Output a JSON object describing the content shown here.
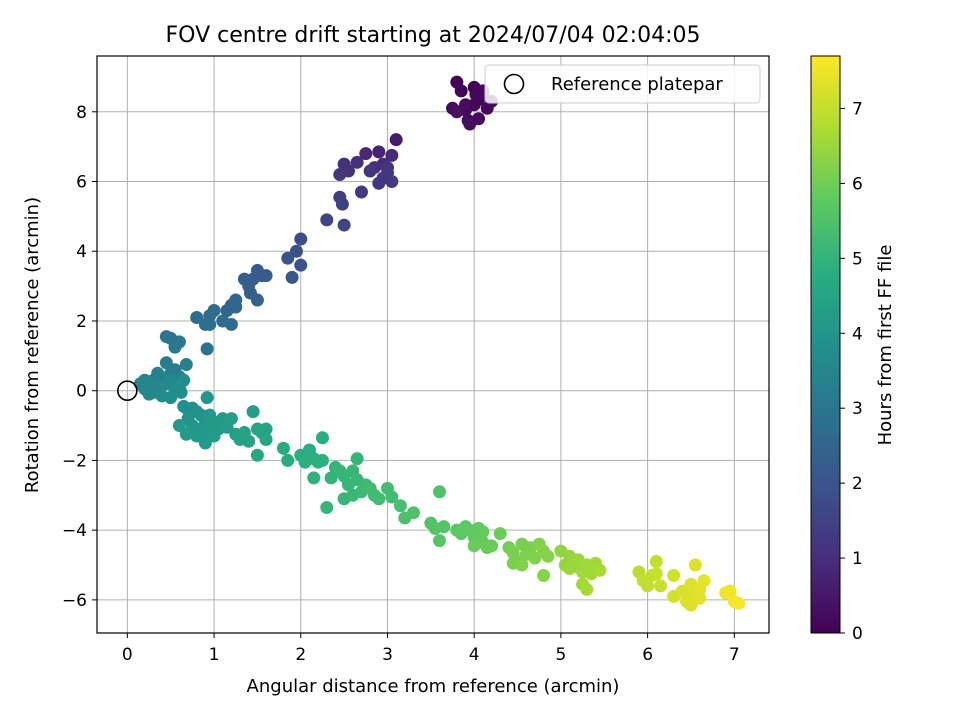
{
  "chart_data": {
    "type": "scatter",
    "title": "FOV centre drift starting at 2024/07/04 02:04:05",
    "xlabel": "Angular distance from reference (arcmin)",
    "ylabel": "Rotation from reference (arcmin)",
    "xlim": [
      -0.35,
      7.4
    ],
    "ylim": [
      -6.95,
      9.6
    ],
    "xticks": [
      "0",
      "1",
      "2",
      "3",
      "4",
      "5",
      "6",
      "7"
    ],
    "yticks": [
      "-6",
      "-4",
      "-2",
      "0",
      "2",
      "4",
      "6",
      "8"
    ],
    "grid": true,
    "legend": {
      "placement": "top-right",
      "entries": [
        "Reference platepar"
      ]
    },
    "reference_point": {
      "label": "Reference platepar",
      "x": 0,
      "y": 0
    },
    "colorbar": {
      "label": "Hours from first FF file",
      "range": [
        0,
        7.7
      ],
      "ticks": [
        "0",
        "1",
        "2",
        "3",
        "4",
        "5",
        "6",
        "7"
      ],
      "colormap": "viridis"
    },
    "series": [
      {
        "color_by": "hours",
        "points": [
          [
            3.8,
            8.85,
            0.05
          ],
          [
            3.85,
            8.6,
            0.1
          ],
          [
            4.0,
            8.7,
            0.08
          ],
          [
            4.1,
            8.5,
            0.12
          ],
          [
            4.05,
            8.35,
            0.15
          ],
          [
            4.15,
            8.1,
            0.18
          ],
          [
            3.9,
            8.05,
            0.2
          ],
          [
            4.0,
            8.2,
            0.14
          ],
          [
            3.75,
            8.1,
            0.22
          ],
          [
            3.95,
            7.65,
            0.25
          ],
          [
            4.05,
            7.8,
            0.2
          ],
          [
            4.1,
            8.6,
            0.1
          ],
          [
            3.9,
            8.2,
            0.25
          ],
          [
            3.8,
            8.0,
            0.28
          ],
          [
            4.2,
            8.3,
            0.16
          ],
          [
            4.02,
            8.5,
            0.13
          ],
          [
            3.93,
            7.75,
            0.3
          ],
          [
            3.1,
            7.2,
            0.6
          ],
          [
            2.9,
            6.85,
            0.8
          ],
          [
            2.75,
            6.8,
            0.85
          ],
          [
            3.05,
            6.75,
            0.9
          ],
          [
            2.95,
            6.5,
            0.95
          ],
          [
            2.85,
            6.4,
            1.0
          ],
          [
            2.65,
            6.55,
            1.05
          ],
          [
            2.5,
            6.5,
            1.1
          ],
          [
            2.55,
            6.3,
            1.1
          ],
          [
            2.8,
            6.3,
            1.15
          ],
          [
            3.0,
            6.25,
            1.2
          ],
          [
            2.95,
            6.1,
            1.25
          ],
          [
            2.9,
            5.95,
            1.25
          ],
          [
            2.7,
            5.7,
            1.3
          ],
          [
            2.45,
            6.2,
            1.2
          ],
          [
            3.05,
            6.0,
            1.3
          ],
          [
            3.0,
            6.4,
            1.15
          ],
          [
            2.45,
            5.55,
            1.4
          ],
          [
            2.48,
            5.35,
            1.45
          ],
          [
            2.3,
            4.9,
            1.55
          ],
          [
            2.5,
            4.75,
            1.6
          ],
          [
            2.0,
            4.35,
            1.8
          ],
          [
            1.95,
            4.0,
            1.9
          ],
          [
            2.0,
            3.6,
            2.0
          ],
          [
            1.85,
            3.8,
            2.0
          ],
          [
            1.9,
            3.25,
            2.1
          ],
          [
            1.6,
            3.3,
            2.15
          ],
          [
            1.5,
            3.45,
            2.2
          ],
          [
            1.45,
            3.2,
            2.25
          ],
          [
            1.55,
            3.3,
            2.2
          ],
          [
            1.4,
            3.0,
            2.3
          ],
          [
            1.5,
            2.6,
            2.4
          ],
          [
            1.42,
            2.8,
            2.35
          ],
          [
            1.35,
            3.2,
            2.3
          ],
          [
            1.25,
            2.6,
            2.5
          ],
          [
            1.2,
            2.45,
            2.55
          ],
          [
            1.15,
            2.3,
            2.6
          ],
          [
            1.25,
            2.4,
            2.55
          ],
          [
            1.0,
            2.3,
            2.65
          ],
          [
            0.95,
            2.15,
            2.7
          ],
          [
            0.8,
            2.1,
            2.75
          ],
          [
            0.9,
            1.9,
            2.8
          ],
          [
            0.95,
            1.9,
            2.8
          ],
          [
            1.2,
            1.9,
            2.75
          ],
          [
            1.1,
            2.0,
            2.7
          ],
          [
            0.92,
            1.2,
            2.9
          ],
          [
            0.5,
            1.5,
            3.0
          ],
          [
            0.45,
            1.55,
            3.0
          ],
          [
            0.6,
            1.4,
            3.05
          ],
          [
            0.55,
            1.25,
            3.1
          ],
          [
            0.45,
            0.8,
            3.2
          ],
          [
            0.55,
            0.6,
            3.25
          ],
          [
            0.68,
            0.75,
            3.3
          ],
          [
            0.6,
            0.4,
            3.3
          ],
          [
            0.5,
            0.5,
            3.3
          ],
          [
            0.35,
            0.5,
            3.35
          ],
          [
            0.4,
            0.35,
            3.35
          ],
          [
            0.3,
            0.3,
            3.4
          ],
          [
            0.25,
            0.2,
            3.4
          ],
          [
            0.2,
            0.3,
            3.45
          ],
          [
            0.15,
            0.2,
            3.45
          ],
          [
            0.2,
            0.05,
            3.5
          ],
          [
            0.25,
            -0.1,
            3.5
          ],
          [
            0.3,
            -0.05,
            3.55
          ],
          [
            0.35,
            0.15,
            3.55
          ],
          [
            0.45,
            0.2,
            3.6
          ],
          [
            0.5,
            0.3,
            3.6
          ],
          [
            0.55,
            0.0,
            3.65
          ],
          [
            0.4,
            -0.15,
            3.65
          ],
          [
            0.6,
            0.1,
            3.7
          ],
          [
            0.65,
            0.3,
            3.7
          ],
          [
            0.5,
            -0.2,
            3.75
          ],
          [
            0.62,
            -0.05,
            3.75
          ],
          [
            0.65,
            -0.45,
            3.8
          ],
          [
            0.7,
            -0.55,
            3.85
          ],
          [
            0.75,
            -0.5,
            3.85
          ],
          [
            0.8,
            -0.6,
            3.9
          ],
          [
            0.85,
            -0.7,
            3.9
          ],
          [
            0.7,
            -0.8,
            3.95
          ],
          [
            0.9,
            -0.9,
            4.0
          ],
          [
            0.75,
            -1.0,
            4.0
          ],
          [
            0.85,
            -1.1,
            4.05
          ],
          [
            0.9,
            -1.2,
            4.05
          ],
          [
            0.95,
            -1.0,
            4.1
          ],
          [
            1.0,
            -0.9,
            4.1
          ],
          [
            0.8,
            -1.3,
            4.1
          ],
          [
            0.68,
            -1.25,
            4.1
          ],
          [
            0.9,
            -1.5,
            4.15
          ],
          [
            0.6,
            -1.0,
            4.1
          ],
          [
            1.05,
            -1.1,
            4.15
          ],
          [
            1.1,
            -0.8,
            4.15
          ],
          [
            1.15,
            -1.05,
            4.2
          ],
          [
            1.0,
            -1.3,
            4.2
          ],
          [
            0.92,
            -0.2,
            4.0
          ],
          [
            0.95,
            -0.7,
            4.05
          ],
          [
            1.2,
            -0.8,
            4.3
          ],
          [
            1.25,
            -1.25,
            4.35
          ],
          [
            1.3,
            -1.4,
            4.4
          ],
          [
            1.35,
            -1.2,
            4.4
          ],
          [
            1.4,
            -1.45,
            4.45
          ],
          [
            1.45,
            -0.6,
            4.3
          ],
          [
            1.5,
            -1.1,
            4.45
          ],
          [
            1.55,
            -1.2,
            4.5
          ],
          [
            1.6,
            -1.1,
            4.5
          ],
          [
            1.6,
            -1.4,
            4.55
          ],
          [
            1.5,
            -1.85,
            4.55
          ],
          [
            1.8,
            -1.65,
            4.7
          ],
          [
            1.85,
            -2.0,
            4.75
          ],
          [
            2.0,
            -1.85,
            4.8
          ],
          [
            2.05,
            -2.05,
            4.85
          ],
          [
            2.1,
            -1.7,
            4.8
          ],
          [
            2.15,
            -1.95,
            4.85
          ],
          [
            2.2,
            -2.05,
            4.9
          ],
          [
            2.25,
            -1.35,
            4.8
          ],
          [
            2.15,
            -2.5,
            4.95
          ],
          [
            2.25,
            -2.0,
            4.9
          ],
          [
            2.35,
            -2.5,
            5.0
          ],
          [
            2.4,
            -2.2,
            5.0
          ],
          [
            2.45,
            -2.3,
            5.05
          ],
          [
            2.5,
            -2.45,
            5.05
          ],
          [
            2.55,
            -2.7,
            5.1
          ],
          [
            2.6,
            -2.3,
            5.1
          ],
          [
            2.65,
            -2.55,
            5.15
          ],
          [
            2.5,
            -3.1,
            5.1
          ],
          [
            2.6,
            -3.0,
            5.15
          ],
          [
            2.75,
            -2.7,
            5.2
          ],
          [
            2.7,
            -2.9,
            5.2
          ],
          [
            2.8,
            -2.8,
            5.25
          ],
          [
            2.85,
            -3.0,
            5.25
          ],
          [
            2.9,
            -3.1,
            5.3
          ],
          [
            3.0,
            -2.8,
            5.3
          ],
          [
            3.05,
            -3.05,
            5.3
          ],
          [
            2.65,
            -1.95,
            5.05
          ],
          [
            2.3,
            -3.35,
            5.1
          ],
          [
            3.15,
            -3.3,
            5.4
          ],
          [
            3.2,
            -3.65,
            5.45
          ],
          [
            3.3,
            -3.5,
            5.5
          ],
          [
            3.5,
            -3.8,
            5.55
          ],
          [
            3.55,
            -3.95,
            5.6
          ],
          [
            3.6,
            -2.9,
            5.5
          ],
          [
            3.65,
            -3.9,
            5.6
          ],
          [
            3.6,
            -4.3,
            5.65
          ],
          [
            3.8,
            -4.0,
            5.7
          ],
          [
            3.85,
            -4.1,
            5.75
          ],
          [
            3.9,
            -3.9,
            5.75
          ],
          [
            3.95,
            -4.0,
            5.8
          ],
          [
            4.0,
            -4.2,
            5.8
          ],
          [
            4.05,
            -3.95,
            5.85
          ],
          [
            4.1,
            -4.35,
            5.85
          ],
          [
            4.15,
            -4.5,
            5.9
          ],
          [
            4.2,
            -4.45,
            5.9
          ],
          [
            4.3,
            -4.1,
            5.95
          ],
          [
            4.0,
            -4.45,
            5.9
          ],
          [
            4.1,
            -4.05,
            5.85
          ],
          [
            4.4,
            -4.5,
            6.05
          ],
          [
            4.45,
            -4.65,
            6.1
          ],
          [
            4.5,
            -4.9,
            6.15
          ],
          [
            4.55,
            -4.4,
            6.1
          ],
          [
            4.6,
            -4.7,
            6.15
          ],
          [
            4.65,
            -4.5,
            6.15
          ],
          [
            4.7,
            -4.8,
            6.2
          ],
          [
            4.75,
            -4.4,
            6.2
          ],
          [
            4.8,
            -4.6,
            6.25
          ],
          [
            4.8,
            -5.3,
            6.3
          ],
          [
            4.85,
            -4.75,
            6.25
          ],
          [
            4.55,
            -5.0,
            6.2
          ],
          [
            4.45,
            -4.95,
            6.15
          ],
          [
            5.0,
            -4.6,
            6.4
          ],
          [
            5.05,
            -5.0,
            6.45
          ],
          [
            5.1,
            -4.75,
            6.45
          ],
          [
            5.15,
            -5.05,
            6.5
          ],
          [
            5.2,
            -4.85,
            6.5
          ],
          [
            5.25,
            -5.2,
            6.55
          ],
          [
            5.3,
            -5.0,
            6.55
          ],
          [
            5.35,
            -5.25,
            6.6
          ],
          [
            5.4,
            -4.95,
            6.6
          ],
          [
            5.45,
            -5.15,
            6.65
          ],
          [
            5.3,
            -5.7,
            6.65
          ],
          [
            5.25,
            -5.55,
            6.6
          ],
          [
            5.1,
            -5.1,
            6.5
          ],
          [
            5.9,
            -5.2,
            6.9
          ],
          [
            5.95,
            -5.45,
            6.95
          ],
          [
            6.0,
            -5.6,
            7.0
          ],
          [
            6.05,
            -5.3,
            7.0
          ],
          [
            6.1,
            -5.25,
            7.05
          ],
          [
            6.15,
            -5.6,
            7.05
          ],
          [
            6.1,
            -4.9,
            7.0
          ],
          [
            6.3,
            -5.3,
            7.15
          ],
          [
            6.3,
            -5.9,
            7.2
          ],
          [
            6.4,
            -5.75,
            7.25
          ],
          [
            6.45,
            -6.05,
            7.3
          ],
          [
            6.5,
            -6.15,
            7.3
          ],
          [
            6.55,
            -5.85,
            7.3
          ],
          [
            6.5,
            -5.55,
            7.3
          ],
          [
            6.6,
            -5.7,
            7.35
          ],
          [
            6.6,
            -5.95,
            7.35
          ],
          [
            6.55,
            -5.0,
            7.3
          ],
          [
            6.65,
            -5.45,
            7.4
          ],
          [
            6.45,
            -5.9,
            7.3
          ],
          [
            6.9,
            -5.8,
            7.5
          ],
          [
            6.95,
            -5.75,
            7.55
          ],
          [
            7.0,
            -6.05,
            7.6
          ],
          [
            7.05,
            -6.1,
            7.65
          ]
        ]
      }
    ]
  }
}
